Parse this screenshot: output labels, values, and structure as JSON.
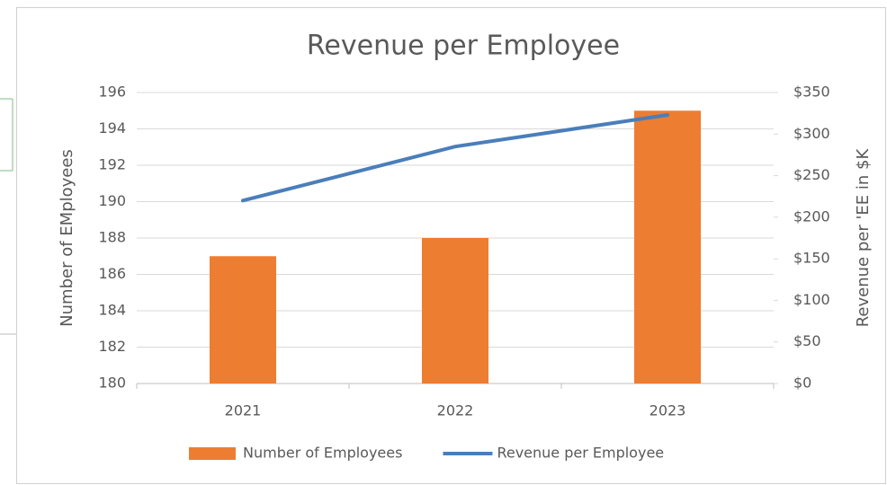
{
  "chart_data": {
    "type": "bar",
    "title": "Revenue per Employee",
    "ylabel": "Number of EMployees",
    "y2label": "Revenue per 'EE in $K",
    "categories": [
      "2021",
      "2022",
      "2023"
    ],
    "series": [
      {
        "name": "Number of Employees",
        "type": "bar",
        "color": "#ed7d31",
        "values": [
          187,
          188,
          195
        ]
      },
      {
        "name": "Revenue per Employee",
        "type": "line",
        "axis": "y2",
        "color": "#4a7ebb",
        "values": [
          220,
          285,
          323
        ]
      }
    ],
    "ylim": [
      180,
      196
    ],
    "yticks": [
      180,
      182,
      184,
      186,
      188,
      190,
      192,
      194,
      196
    ],
    "y2lim": [
      0,
      350
    ],
    "y2ticks": [
      {
        "value": 0,
        "label": "$0"
      },
      {
        "value": 50,
        "label": "$50"
      },
      {
        "value": 100,
        "label": "$100"
      },
      {
        "value": 150,
        "label": "$150"
      },
      {
        "value": 200,
        "label": "$200"
      },
      {
        "value": 250,
        "label": "$250"
      },
      {
        "value": 300,
        "label": "$300"
      },
      {
        "value": 350,
        "label": "$350"
      }
    ],
    "grid": true,
    "legend": "bottom"
  }
}
